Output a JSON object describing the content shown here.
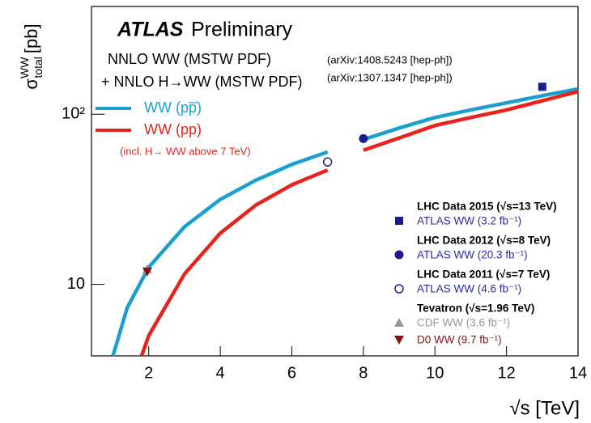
{
  "chart_data": {
    "type": "line",
    "logy": true,
    "header": {
      "experiment": "ATLAS",
      "status": "Preliminary"
    },
    "annotations": [
      "NNLO WW (MSTW PDF)",
      "(arXiv:1408.5243 [hep-ph])",
      "+ NNLO H→WW (MSTW PDF)",
      "(arXiv:1307.1347 [hep-ph])",
      "(incl. H→ WW above 7 TeV)"
    ],
    "y_label": {
      "symbol": "σ",
      "sup": "WW",
      "sub": "total",
      "unit": "[pb]"
    },
    "x_label": "√s [TeV]",
    "xlim": [
      0.4,
      14
    ],
    "ylim": [
      3.8,
      430
    ],
    "xticks": [
      2,
      4,
      6,
      8,
      10,
      12,
      14
    ],
    "yticks": [
      10,
      {
        "value": 100,
        "label": "10²"
      }
    ],
    "series": [
      {
        "name": "WW (pp̅)",
        "type": "line",
        "color": "#1a9fcf",
        "x": [
          1,
          1.4,
          2,
          3,
          4,
          5,
          6,
          7,
          7.5,
          8,
          9,
          10,
          11,
          12,
          13,
          14
        ],
        "values": [
          3.8,
          7.3,
          12.6,
          21.8,
          31.6,
          41,
          50.7,
          60,
          null,
          71,
          83,
          95.7,
          106,
          116.6,
          128.6,
          141
        ]
      },
      {
        "name": "WW (pp)",
        "type": "line",
        "color": "#e8231e",
        "x": [
          1.8,
          2,
          3,
          4,
          5,
          6,
          7,
          7.5,
          8,
          9,
          10,
          11,
          12,
          13,
          14
        ],
        "values": [
          3.8,
          5,
          11.5,
          20,
          29.3,
          38.5,
          47,
          null,
          61.5,
          72.5,
          85.8,
          95.7,
          106,
          120,
          136
        ]
      },
      {
        "name": "ATLAS WW (3.2 fb⁻¹)",
        "group": "LHC Data 2015 (√s=13 TeV)",
        "type": "scatter",
        "marker": "square",
        "color": "#1c1c8f",
        "text_color": "#2a2aa0",
        "x": [
          13
        ],
        "values": [
          145
        ]
      },
      {
        "name": "ATLAS WW (20.3 fb⁻¹)",
        "group": "LHC Data 2012 (√s=8 TeV)",
        "type": "scatter",
        "marker": "circle",
        "color": "#1c1c8f",
        "text_color": "#2a2aa0",
        "x": [
          8
        ],
        "values": [
          71.9
        ]
      },
      {
        "name": "ATLAS WW (4.6 fb⁻¹)",
        "group": "LHC Data 2011 (√s=7 TeV)",
        "type": "scatter",
        "marker": "open-circle",
        "color": "#1c1c8f",
        "text_color": "#2a2aa0",
        "x": [
          7
        ],
        "values": [
          52.4
        ]
      },
      {
        "name": "CDF WW (3.6 fb⁻¹)",
        "group": "Tevatron (√s=1.96 TeV)",
        "type": "scatter",
        "marker": "triangle-up",
        "color": "#999999",
        "text_color": "#999999",
        "x": [
          1.96
        ],
        "values": [
          12.3
        ]
      },
      {
        "name": "D0 WW (9.7 fb⁻¹)",
        "type": "scatter",
        "marker": "triangle-down",
        "color": "#8b1010",
        "text_color": "#8b1010",
        "x": [
          1.96
        ],
        "values": [
          11.9
        ]
      }
    ]
  }
}
